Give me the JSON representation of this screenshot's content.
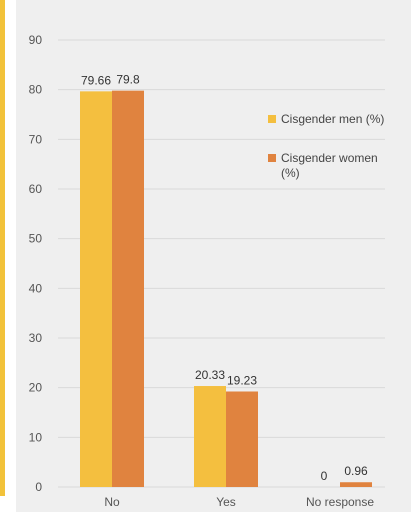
{
  "chart_data": {
    "type": "bar",
    "categories": [
      "No",
      "Yes",
      "No response"
    ],
    "series": [
      {
        "name": "Cisgender men (%)",
        "values": [
          79.66,
          20.33,
          0
        ],
        "labels": [
          "79.66",
          "20.33",
          "0"
        ],
        "color": "#f4bf3f"
      },
      {
        "name": "Cisgender women (%)",
        "name_lines": [
          "Cisgender women",
          "(%)"
        ],
        "values": [
          79.8,
          19.23,
          0.96
        ],
        "labels": [
          "79.8",
          "19.23",
          "0.96"
        ],
        "color": "#e0833f"
      }
    ],
    "yticks": [
      0,
      10,
      20,
      30,
      40,
      50,
      60,
      70,
      80,
      90
    ],
    "ylim": [
      0,
      90
    ],
    "grid": true,
    "legend_position": "right",
    "title": "",
    "xlabel": "",
    "ylabel": ""
  },
  "colors": {
    "accent": "#f2c23a",
    "panel": "#efefef",
    "grid": "#d9d9d9"
  }
}
